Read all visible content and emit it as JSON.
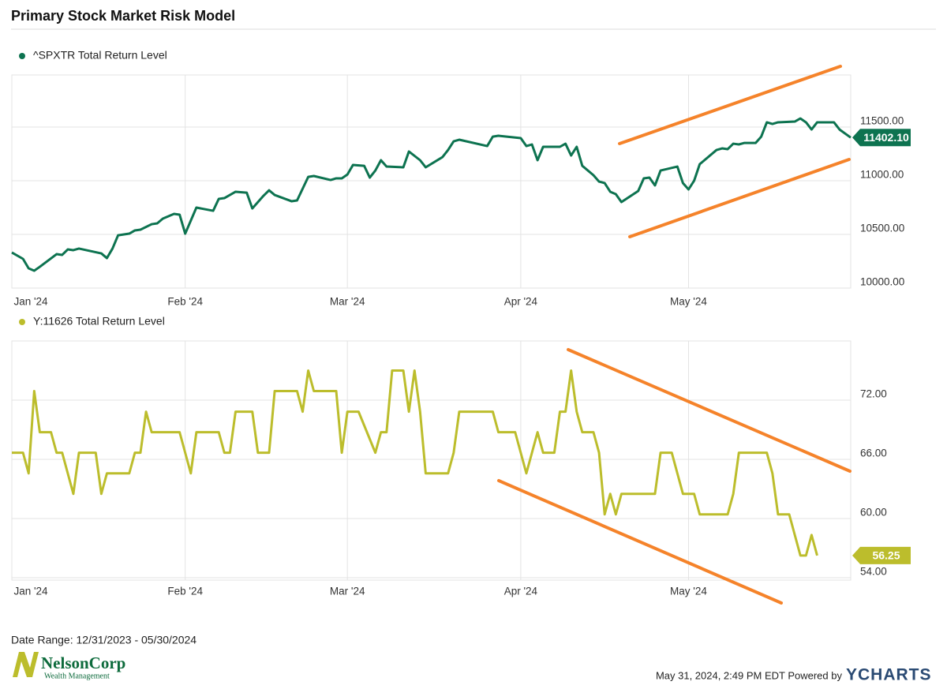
{
  "title": "Primary Stock Market Risk Model",
  "footer": {
    "date_range": "Date Range: 12/31/2023 - 05/30/2024",
    "timestamp": "May 31, 2024, 2:49 PM EDT Powered by",
    "brand": "YCHARTS",
    "logo_name": "NelsonCorp",
    "logo_sub": "Wealth Management"
  },
  "chart_data": [
    {
      "type": "line",
      "x": [
        "2024-01-01",
        "2024-01-03",
        "2024-01-04",
        "2024-01-05",
        "2024-01-06",
        "2024-01-09",
        "2024-01-10",
        "2024-01-11",
        "2024-01-12",
        "2024-01-13",
        "2024-01-17",
        "2024-01-18",
        "2024-01-19",
        "2024-01-20",
        "2024-01-22",
        "2024-01-23",
        "2024-01-24",
        "2024-01-26",
        "2024-01-27",
        "2024-01-28",
        "2024-01-30",
        "2024-01-31",
        "2024-02-01",
        "2024-02-03",
        "2024-02-06",
        "2024-02-07",
        "2024-02-08",
        "2024-02-10",
        "2024-02-12",
        "2024-02-13",
        "2024-02-15",
        "2024-02-16",
        "2024-02-17",
        "2024-02-20",
        "2024-02-21",
        "2024-02-23",
        "2024-02-24",
        "2024-02-27",
        "2024-02-28",
        "2024-02-29",
        "2024-03-01",
        "2024-03-02",
        "2024-03-04",
        "2024-03-05",
        "2024-03-06",
        "2024-03-07",
        "2024-03-08",
        "2024-03-11",
        "2024-03-12",
        "2024-03-14",
        "2024-03-15",
        "2024-03-18",
        "2024-03-19",
        "2024-03-20",
        "2024-03-21",
        "2024-03-26",
        "2024-03-27",
        "2024-03-28",
        "2024-04-01",
        "2024-04-02",
        "2024-04-03",
        "2024-04-04",
        "2024-04-05",
        "2024-04-08",
        "2024-04-09",
        "2024-04-10",
        "2024-04-11",
        "2024-04-12",
        "2024-04-14",
        "2024-04-15",
        "2024-04-16",
        "2024-04-17",
        "2024-04-18",
        "2024-04-19",
        "2024-04-22",
        "2024-04-23",
        "2024-04-24",
        "2024-04-25",
        "2024-04-26",
        "2024-04-29",
        "2024-04-30",
        "2024-05-01",
        "2024-05-02",
        "2024-05-03",
        "2024-05-06",
        "2024-05-07",
        "2024-05-08",
        "2024-05-09",
        "2024-05-10",
        "2024-05-11",
        "2024-05-13",
        "2024-05-14",
        "2024-05-15",
        "2024-05-16",
        "2024-05-17",
        "2024-05-20",
        "2024-05-21",
        "2024-05-22",
        "2024-05-23",
        "2024-05-24",
        "2024-05-27",
        "2024-05-28",
        "2024-05-30"
      ],
      "series": [
        {
          "name": "^SPXTR Total Return Level",
          "color": "#0d7350",
          "values": [
            10331,
            10272,
            10184,
            10162,
            10198,
            10316,
            10309,
            10360,
            10353,
            10368,
            10323,
            10279,
            10368,
            10492,
            10507,
            10537,
            10544,
            10595,
            10603,
            10647,
            10691,
            10684,
            10507,
            10750,
            10720,
            10831,
            10838,
            10897,
            10889,
            10742,
            10860,
            10911,
            10867,
            10809,
            10816,
            11036,
            11044,
            11007,
            11022,
            11022,
            11058,
            11147,
            11139,
            11029,
            11095,
            11191,
            11132,
            11125,
            11272,
            11191,
            11125,
            11220,
            11286,
            11367,
            11382,
            11323,
            11411,
            11419,
            11397,
            11323,
            11338,
            11191,
            11316,
            11316,
            11345,
            11235,
            11316,
            11139,
            11051,
            10992,
            10978,
            10897,
            10875,
            10801,
            10904,
            11022,
            11029,
            10956,
            11095,
            11132,
            10978,
            10919,
            11000,
            11154,
            11286,
            11301,
            11294,
            11345,
            11338,
            11352,
            11352,
            11411,
            11544,
            11529,
            11544,
            11551,
            11580,
            11544,
            11477,
            11544,
            11544,
            11477,
            11402.1
          ],
          "last_value_label": "11402.10"
        }
      ],
      "xlim": [
        "2024-01-01",
        "2024-05-30"
      ],
      "xticks": [
        {
          "value": "2024-01-01",
          "label": "Jan '24"
        },
        {
          "value": "2024-02-01",
          "label": "Feb '24"
        },
        {
          "value": "2024-03-01",
          "label": "Mar '24"
        },
        {
          "value": "2024-04-01",
          "label": "Apr '24"
        },
        {
          "value": "2024-05-01",
          "label": "May '24"
        }
      ],
      "ylim": [
        10000,
        11985
      ],
      "yticks": [
        {
          "value": 10000,
          "label": "10000.00"
        },
        {
          "value": 10500,
          "label": "10500.00"
        },
        {
          "value": 11000,
          "label": "11000.00"
        },
        {
          "value": 11500,
          "label": "11500.00"
        }
      ],
      "grid": true,
      "legend": "top-left"
    },
    {
      "type": "line",
      "x": [
        "2024-01-01",
        "2024-01-03",
        "2024-01-04",
        "2024-01-05",
        "2024-01-06",
        "2024-01-08",
        "2024-01-09",
        "2024-01-10",
        "2024-01-12",
        "2024-01-13",
        "2024-01-16",
        "2024-01-17",
        "2024-01-18",
        "2024-01-22",
        "2024-01-23",
        "2024-01-24",
        "2024-01-25",
        "2024-01-26",
        "2024-01-31",
        "2024-02-02",
        "2024-02-03",
        "2024-02-07",
        "2024-02-08",
        "2024-02-09",
        "2024-02-10",
        "2024-02-13",
        "2024-02-14",
        "2024-02-16",
        "2024-02-17",
        "2024-02-21",
        "2024-02-22",
        "2024-02-23",
        "2024-02-24",
        "2024-02-28",
        "2024-02-29",
        "2024-03-01",
        "2024-03-03",
        "2024-03-06",
        "2024-03-07",
        "2024-03-08",
        "2024-03-09",
        "2024-03-11",
        "2024-03-12",
        "2024-03-13",
        "2024-03-14",
        "2024-03-15",
        "2024-03-19",
        "2024-03-20",
        "2024-03-21",
        "2024-03-27",
        "2024-03-28",
        "2024-03-31",
        "2024-04-02",
        "2024-04-04",
        "2024-04-05",
        "2024-04-07",
        "2024-04-08",
        "2024-04-09",
        "2024-04-10",
        "2024-04-11",
        "2024-04-12",
        "2024-04-14",
        "2024-04-15",
        "2024-04-16",
        "2024-04-17",
        "2024-04-18",
        "2024-04-19",
        "2024-04-25",
        "2024-04-26",
        "2024-04-28",
        "2024-04-30",
        "2024-05-02",
        "2024-05-03",
        "2024-05-08",
        "2024-05-09",
        "2024-05-10",
        "2024-05-15",
        "2024-05-16",
        "2024-05-17",
        "2024-05-19",
        "2024-05-21",
        "2024-05-22",
        "2024-05-23",
        "2024-05-24"
      ],
      "series": [
        {
          "name": "Y:11626 Total Return Level",
          "color": "#bcbd2c",
          "values": [
            66.67,
            66.67,
            64.58,
            72.92,
            68.75,
            68.75,
            66.67,
            66.67,
            62.5,
            66.67,
            66.67,
            62.5,
            64.58,
            64.58,
            66.67,
            66.67,
            70.83,
            68.75,
            68.75,
            64.58,
            68.75,
            68.75,
            66.67,
            66.67,
            70.83,
            70.83,
            66.67,
            66.67,
            72.92,
            72.92,
            70.83,
            75,
            72.92,
            72.92,
            66.67,
            70.83,
            70.83,
            66.67,
            68.75,
            68.75,
            75,
            75,
            70.83,
            75,
            70.83,
            64.58,
            64.58,
            66.67,
            70.83,
            70.83,
            68.75,
            68.75,
            64.58,
            68.75,
            66.67,
            66.67,
            70.83,
            70.83,
            75,
            70.83,
            68.75,
            68.75,
            66.67,
            60.42,
            62.5,
            60.42,
            62.5,
            62.5,
            66.67,
            66.67,
            62.5,
            62.5,
            60.42,
            60.42,
            62.5,
            66.67,
            66.67,
            64.58,
            60.42,
            60.42,
            56.25,
            56.25,
            58.33,
            56.25
          ]
        }
      ],
      "xlim": [
        "2024-01-01",
        "2024-05-30"
      ],
      "xticks": [
        {
          "value": "2024-01-01",
          "label": "Jan '24"
        },
        {
          "value": "2024-02-01",
          "label": "Feb '24"
        },
        {
          "value": "2024-03-01",
          "label": "Mar '24"
        },
        {
          "value": "2024-04-01",
          "label": "Apr '24"
        },
        {
          "value": "2024-05-01",
          "label": "May '24"
        }
      ],
      "ylim": [
        53.76,
        78
      ],
      "yticks": [
        {
          "value": 54,
          "label": "54.00"
        },
        {
          "value": 60,
          "label": "60.00"
        },
        {
          "value": 66,
          "label": "66.00"
        },
        {
          "value": 72,
          "label": "72.00"
        }
      ],
      "grid": true,
      "legend": "top-left"
    }
  ]
}
